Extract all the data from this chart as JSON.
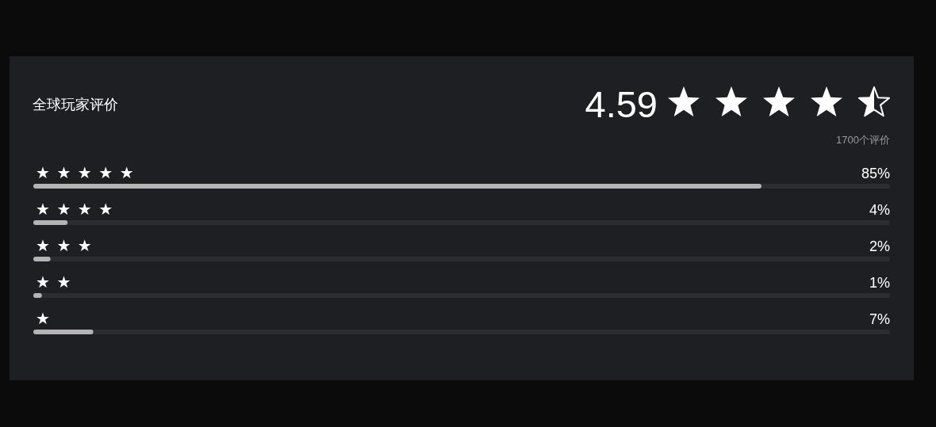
{
  "chart_data": {
    "type": "bar",
    "orientation": "horizontal",
    "title": "全球玩家评价",
    "annotations": [
      "4.59",
      "1700个评价"
    ],
    "categories": [
      "★★★★★",
      "★★★★",
      "★★★",
      "★★",
      "★"
    ],
    "values": [
      85,
      4,
      2,
      1,
      7
    ],
    "value_labels": [
      "85%",
      "4%",
      "2%",
      "1%",
      "7%"
    ],
    "color": "#b4b4b4",
    "xlim": [
      0,
      100
    ],
    "tick_labels": "y"
  }
}
